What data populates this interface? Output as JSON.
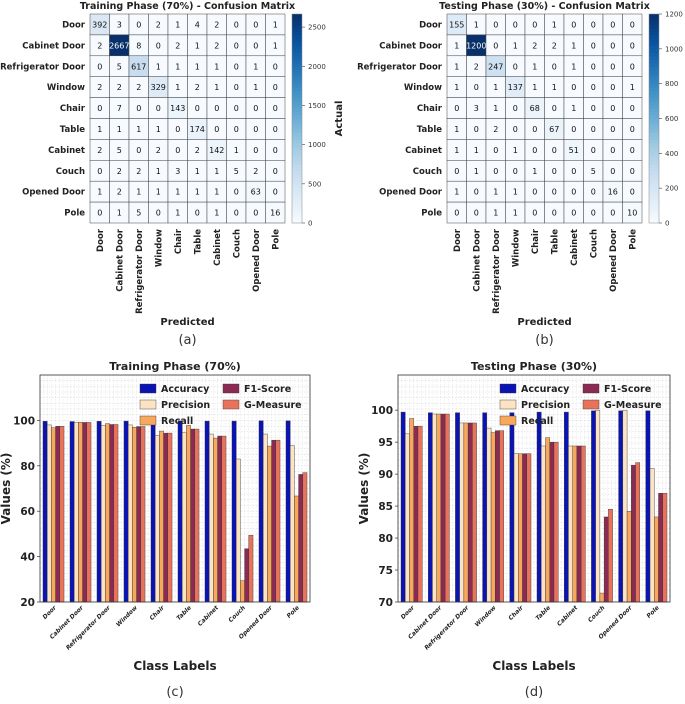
{
  "chart_data": [
    {
      "type": "heatmap",
      "title": "Training Phase (70%) - Confusion Matrix",
      "xlabel": "Predicted",
      "ylabel": "Actual",
      "caption": "(a)",
      "labels": [
        "Door",
        "Cabinet Door",
        "Refrigerator Door",
        "Window",
        "Chair",
        "Table",
        "Cabinet",
        "Couch",
        "Opened Door",
        "Pole"
      ],
      "matrix": [
        [
          392,
          3,
          0,
          2,
          1,
          4,
          2,
          0,
          0,
          1
        ],
        [
          2,
          2667,
          8,
          0,
          2,
          1,
          2,
          0,
          0,
          1
        ],
        [
          0,
          5,
          617,
          1,
          1,
          1,
          1,
          0,
          1,
          0
        ],
        [
          2,
          2,
          2,
          329,
          1,
          2,
          1,
          0,
          1,
          0
        ],
        [
          0,
          7,
          0,
          0,
          143,
          0,
          0,
          0,
          0,
          0
        ],
        [
          1,
          1,
          1,
          1,
          0,
          174,
          0,
          0,
          0,
          0
        ],
        [
          2,
          5,
          0,
          2,
          0,
          2,
          142,
          1,
          0,
          0
        ],
        [
          0,
          2,
          2,
          1,
          3,
          1,
          1,
          5,
          2,
          0
        ],
        [
          1,
          2,
          1,
          1,
          1,
          1,
          1,
          0,
          63,
          0
        ],
        [
          0,
          1,
          5,
          0,
          1,
          0,
          1,
          0,
          0,
          16
        ]
      ],
      "colorbar": {
        "min": 0,
        "max": 2667,
        "ticks": [
          0,
          500,
          1000,
          1500,
          2000,
          2500
        ]
      }
    },
    {
      "type": "heatmap",
      "title": "Testing Phase (30%) - Confusion Matrix",
      "xlabel": "Predicted",
      "ylabel": "Actual",
      "caption": "(b)",
      "labels": [
        "Door",
        "Cabinet Door",
        "Refrigerator Door",
        "Window",
        "Chair",
        "Table",
        "Cabinet",
        "Couch",
        "Opened Door",
        "Pole"
      ],
      "matrix": [
        [
          155,
          1,
          0,
          0,
          0,
          1,
          0,
          0,
          0,
          0
        ],
        [
          1,
          1200,
          0,
          1,
          2,
          2,
          1,
          0,
          0,
          0
        ],
        [
          1,
          2,
          247,
          0,
          1,
          0,
          1,
          0,
          0,
          0
        ],
        [
          1,
          0,
          1,
          137,
          1,
          1,
          0,
          0,
          0,
          1
        ],
        [
          0,
          3,
          1,
          0,
          68,
          0,
          1,
          0,
          0,
          0
        ],
        [
          1,
          0,
          2,
          0,
          0,
          67,
          0,
          0,
          0,
          0
        ],
        [
          1,
          1,
          0,
          1,
          0,
          0,
          51,
          0,
          0,
          0
        ],
        [
          0,
          1,
          0,
          0,
          1,
          0,
          0,
          5,
          0,
          0
        ],
        [
          1,
          0,
          1,
          1,
          0,
          0,
          0,
          0,
          16,
          0
        ],
        [
          0,
          0,
          1,
          1,
          0,
          0,
          0,
          0,
          0,
          10
        ]
      ],
      "colorbar": {
        "min": 0,
        "max": 1200,
        "ticks": [
          0,
          200,
          400,
          600,
          800,
          1000,
          1200
        ]
      }
    },
    {
      "type": "bar",
      "title": "Training Phase (70%)",
      "xlabel": "Class Labels",
      "ylabel": "Values (%)",
      "caption": "(c)",
      "ylim": [
        20,
        120
      ],
      "yticks": [
        20,
        40,
        60,
        80,
        100
      ],
      "grid": true,
      "legend_position": "top-right",
      "categories": [
        "Door",
        "Cabinet Door",
        "Refrigerator Door",
        "Window",
        "Chair",
        "Table",
        "Cabinet",
        "Couch",
        "Opened Door",
        "Pole"
      ],
      "series": [
        {
          "name": "Accuracy",
          "color": "#0a14b4",
          "values": [
            99.6,
            99.5,
            99.6,
            99.7,
            99.7,
            99.8,
            99.7,
            99.7,
            99.8,
            99.8
          ]
        },
        {
          "name": "Precision",
          "color": "#fbe3c4",
          "values": [
            98.0,
            99.1,
            97.8,
            98.0,
            93.5,
            94.6,
            94.0,
            83.0,
            94.0,
            88.9
          ]
        },
        {
          "name": "Recall",
          "color": "#f7a85c",
          "values": [
            96.8,
            99.2,
            98.6,
            97.0,
            95.3,
            97.8,
            92.2,
            29.4,
            88.7,
            66.7
          ]
        },
        {
          "name": "F1-Score",
          "color": "#8b2a52",
          "values": [
            97.4,
            99.1,
            98.2,
            97.3,
            94.4,
            96.2,
            93.1,
            43.5,
            91.3,
            76.2
          ]
        },
        {
          "name": "G-Measure",
          "color": "#e8735a",
          "values": [
            97.4,
            99.1,
            98.2,
            97.3,
            94.4,
            96.2,
            93.1,
            49.4,
            91.3,
            77.0
          ]
        }
      ]
    },
    {
      "type": "bar",
      "title": "Testing Phase (30%)",
      "xlabel": "Class Labels",
      "ylabel": "Values (%)",
      "caption": "(d)",
      "ylim": [
        70,
        105.5
      ],
      "yticks": [
        70,
        75,
        80,
        85,
        90,
        95,
        100
      ],
      "grid": true,
      "legend_position": "top-right",
      "categories": [
        "Door",
        "Cabinet Door",
        "Refrigerator Door",
        "Window",
        "Chair",
        "Table",
        "Cabinet",
        "Couch",
        "Opened Door",
        "Pole"
      ],
      "series": [
        {
          "name": "Accuracy",
          "color": "#0a14b4",
          "values": [
            99.7,
            99.6,
            99.6,
            99.6,
            99.6,
            99.7,
            99.7,
            99.9,
            99.9,
            99.9
          ]
        },
        {
          "name": "Precision",
          "color": "#fbe3c4",
          "values": [
            96.3,
            99.4,
            98.0,
            97.2,
            93.2,
            94.4,
            94.4,
            100.0,
            100.0,
            90.9
          ]
        },
        {
          "name": "Recall",
          "color": "#f7a85c",
          "values": [
            98.7,
            99.4,
            98.0,
            96.5,
            93.2,
            95.7,
            94.4,
            71.4,
            84.2,
            83.3
          ]
        },
        {
          "name": "F1-Score",
          "color": "#8b2a52",
          "values": [
            97.5,
            99.4,
            98.0,
            96.8,
            93.2,
            95.0,
            94.4,
            83.3,
            91.4,
            87.0
          ]
        },
        {
          "name": "G-Measure",
          "color": "#e8735a",
          "values": [
            97.5,
            99.4,
            98.0,
            96.8,
            93.2,
            95.0,
            94.4,
            84.5,
            91.8,
            87.0
          ]
        }
      ]
    }
  ]
}
